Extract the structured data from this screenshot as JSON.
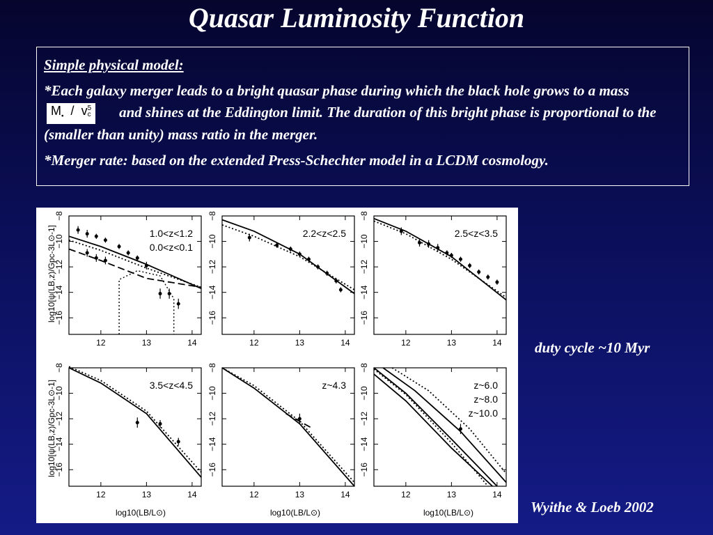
{
  "slide": {
    "title": "Quasar Luminosity Function",
    "model_heading": "Simple physical model:",
    "para1_before": "*Each galaxy merger leads to a bright quasar phase during which the black hole grows to a mass",
    "para1_after": "and shines at the Eddington limit. The duration of this bright phase is proportional to the (smaller than unity) mass ratio in the merger.",
    "formula": {
      "m": "M",
      "m_sub": "•",
      "slash": "/",
      "v": "v",
      "v_sup": "5",
      "v_sub": "c"
    },
    "para2": "*Merger rate: based on the extended Press-Schechter model in a LCDM cosmology.",
    "duty_cycle": "duty cycle ~10 Myr",
    "citation": "Wyithe & Loeb 2002"
  },
  "figure": {
    "ylabel": "log10[ψ(LB,z)/Gpc-3L⊙-1]",
    "xlabel": "log10(LB/L⊙)",
    "xticks": [
      "12",
      "13",
      "14"
    ],
    "yticks": [
      "−8",
      "−10",
      "−12",
      "−14",
      "−16"
    ],
    "panels": [
      {
        "labels": [
          "1.0<z<1.2",
          "0.0<z<0.1"
        ]
      },
      {
        "labels": [
          "2.2<z<2.5"
        ]
      },
      {
        "labels": [
          "2.5<z<3.5"
        ]
      },
      {
        "labels": [
          "3.5<z<4.5"
        ]
      },
      {
        "labels": [
          "z~4.3"
        ]
      },
      {
        "labels": [
          "z~6.0",
          "z~8.0",
          "z~10.0"
        ]
      }
    ]
  }
}
